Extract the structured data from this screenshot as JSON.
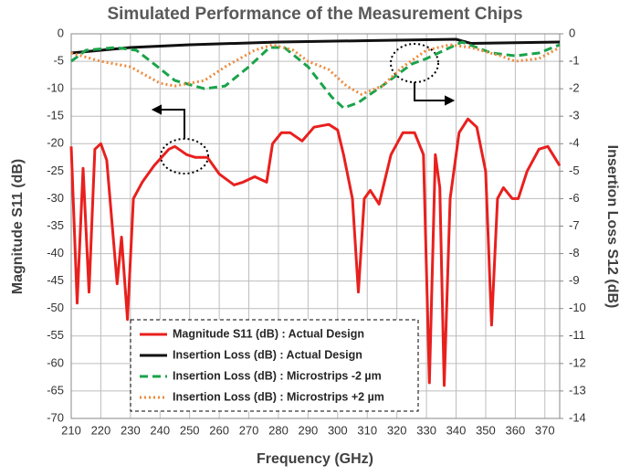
{
  "chart_data": {
    "type": "line",
    "title": "Simulated Performance of the Measurement Chips",
    "x_label": "Frequency (GHz)",
    "y_label": "Magnitude S11 (dB)",
    "y2_label": "Insertion Loss S12 (dB)",
    "xlim": [
      210,
      375
    ],
    "xticks": [
      210,
      220,
      230,
      240,
      250,
      260,
      270,
      280,
      290,
      300,
      310,
      320,
      330,
      340,
      350,
      360,
      370
    ],
    "ylim": [
      -70,
      0
    ],
    "yticks": [
      0,
      -5,
      -10,
      -15,
      -20,
      -25,
      -30,
      -35,
      -40,
      -45,
      -50,
      -55,
      -60,
      -65,
      -70
    ],
    "y2lim": [
      -14,
      0
    ],
    "y2ticks": [
      0,
      -1,
      -2,
      -3,
      -4,
      -5,
      -6,
      -7,
      -8,
      -9,
      -10,
      -11,
      -12,
      -13,
      -14
    ],
    "grid": true,
    "series": [
      {
        "name": "Magnitude S11 (dB) : Actual Design",
        "color": "#e8201e",
        "dash": "solid",
        "axis": "y",
        "x": [
          210,
          212,
          214,
          216,
          218,
          220,
          222,
          225.5,
          227,
          229,
          231,
          234,
          238,
          243,
          245,
          249,
          252,
          256,
          260,
          265,
          268,
          272,
          276,
          278,
          281,
          284,
          288,
          292,
          297,
          300,
          302,
          305,
          307,
          309,
          311,
          314,
          318,
          322,
          326,
          329,
          331,
          333,
          334.5,
          336,
          338,
          341,
          344,
          347,
          350,
          352,
          354,
          356,
          359,
          361,
          364,
          368,
          371,
          375
        ],
        "values": [
          -20.5,
          -49,
          -24.5,
          -47,
          -21,
          -20,
          -23,
          -45.5,
          -37,
          -52,
          -30,
          -27,
          -24,
          -21,
          -20.5,
          -22,
          -22.5,
          -22.5,
          -25.5,
          -27.5,
          -27,
          -26,
          -27,
          -20,
          -18,
          -18,
          -19.5,
          -17,
          -16.5,
          -17.5,
          -22,
          -30,
          -47,
          -30,
          -28.5,
          -31,
          -22,
          -18,
          -18,
          -22,
          -63.5,
          -22,
          -28,
          -64,
          -30,
          -18,
          -15.5,
          -17,
          -25,
          -53,
          -30,
          -28,
          -30,
          -30,
          -25,
          -21,
          -20.5,
          -24
        ]
      },
      {
        "name": "Insertion Loss (dB) : Actual Design",
        "color": "#111111",
        "dash": "solid",
        "axis": "y2",
        "x": [
          210,
          220,
          230,
          250,
          280,
          310,
          340,
          345,
          375
        ],
        "values": [
          -0.7,
          -0.6,
          -0.5,
          -0.4,
          -0.3,
          -0.25,
          -0.2,
          -0.35,
          -0.3
        ]
      },
      {
        "name": "Insertion Loss (dB) : Microstrips -2 µm",
        "color": "#1aa34a",
        "dash": "dashed",
        "axis": "y2",
        "x": [
          210,
          215,
          225,
          232,
          238,
          245,
          255,
          262,
          270,
          277,
          282,
          290,
          298,
          302,
          307,
          315,
          325,
          330,
          338,
          342,
          347,
          352,
          360,
          368,
          375
        ],
        "values": [
          -1,
          -0.6,
          -0.5,
          -0.6,
          -1.1,
          -1.7,
          -2,
          -1.9,
          -1.2,
          -0.5,
          -0.5,
          -1.2,
          -2.3,
          -2.7,
          -2.5,
          -1.9,
          -1.1,
          -0.9,
          -0.5,
          -0.3,
          -0.5,
          -0.7,
          -0.8,
          -0.7,
          -0.4
        ]
      },
      {
        "name": "Insertion Loss (dB) : Microstrips +2 µm",
        "color": "#ed8a3c",
        "dash": "dotted",
        "axis": "y2",
        "x": [
          210,
          220,
          230,
          240,
          245,
          255,
          262,
          272,
          278,
          285,
          290,
          297,
          303,
          308,
          315,
          322,
          330,
          338,
          345,
          355,
          360,
          368,
          375
        ],
        "values": [
          -0.7,
          -1,
          -1.2,
          -1.8,
          -1.9,
          -1.7,
          -1.2,
          -0.6,
          -0.4,
          -0.6,
          -1,
          -1.3,
          -1.9,
          -2.2,
          -1.9,
          -1.2,
          -0.6,
          -0.4,
          -0.5,
          -0.8,
          -1,
          -0.9,
          -0.5
        ]
      }
    ]
  }
}
